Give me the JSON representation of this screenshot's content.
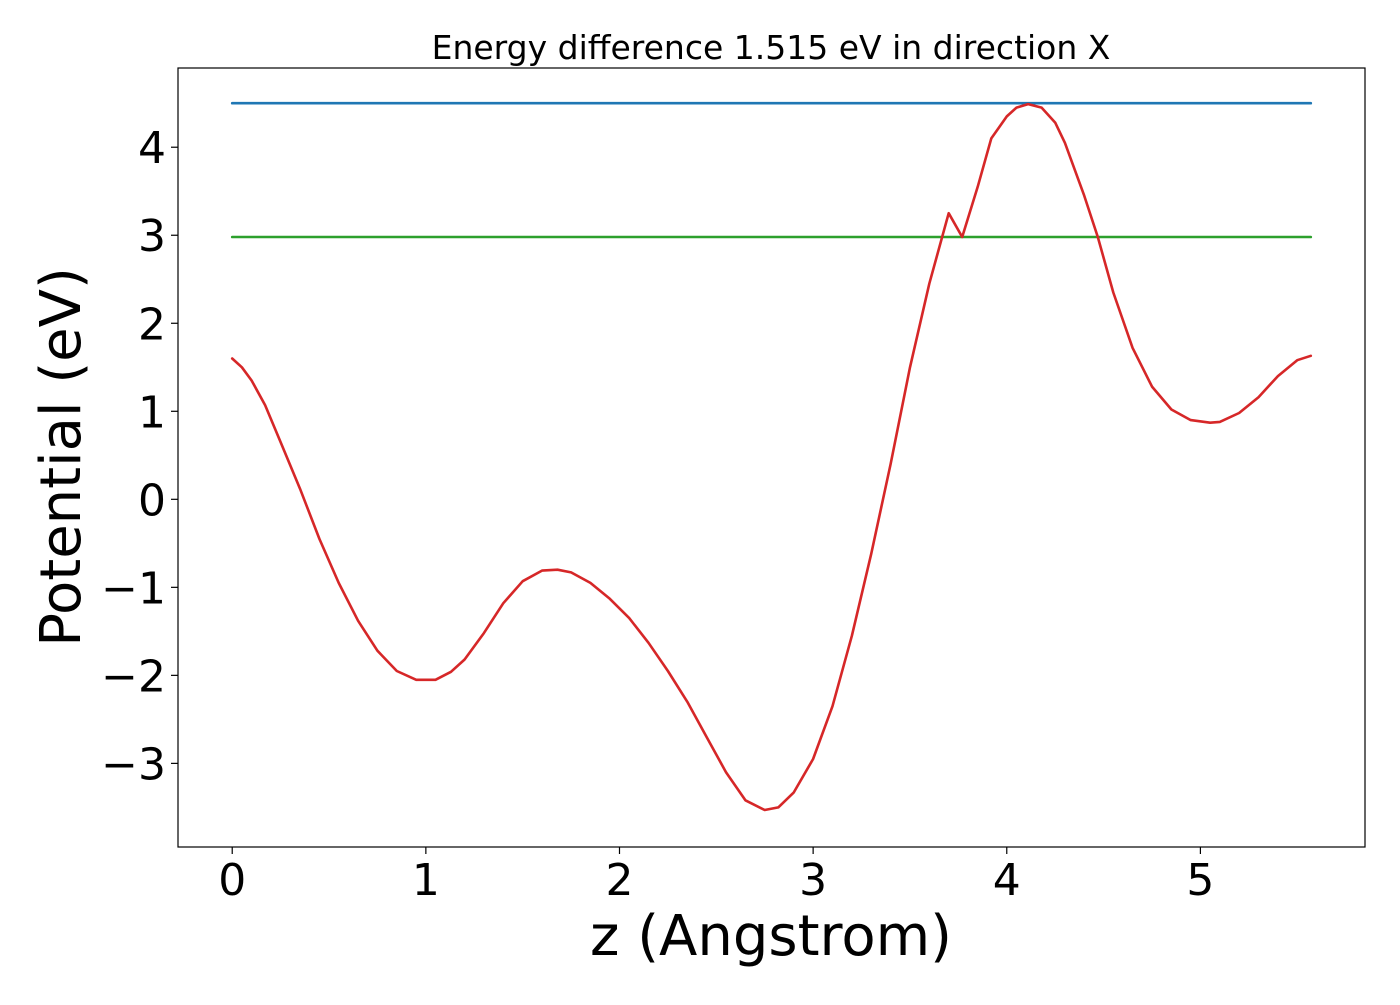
{
  "chart_data": {
    "type": "line",
    "title": "Energy difference 1.515 eV in direction X",
    "xlabel": "z (Angstrom)",
    "ylabel": "Potential (eV)",
    "xlim": [
      -0.28,
      5.85
    ],
    "ylim": [
      -3.95,
      4.9
    ],
    "xticks": [
      0,
      1,
      2,
      3,
      4,
      5
    ],
    "xtick_labels": [
      "0",
      "1",
      "2",
      "3",
      "4",
      "5"
    ],
    "yticks": [
      -3,
      -2,
      -1,
      0,
      1,
      2,
      3,
      4
    ],
    "ytick_labels": [
      "−3",
      "−2",
      "−1",
      "0",
      "1",
      "2",
      "3",
      "4"
    ],
    "grid": false,
    "series": [
      {
        "color": "#1f77b4",
        "style": "hline",
        "x": [
          0,
          5.57
        ],
        "y": [
          4.5,
          4.5
        ]
      },
      {
        "color": "#2ca02c",
        "style": "hline",
        "x": [
          0,
          5.57
        ],
        "y": [
          2.98,
          2.98
        ]
      },
      {
        "color": "#d62728",
        "style": "line",
        "x": [
          0.0,
          0.05,
          0.1,
          0.17,
          0.25,
          0.35,
          0.45,
          0.55,
          0.65,
          0.75,
          0.85,
          0.95,
          1.05,
          1.13,
          1.2,
          1.3,
          1.4,
          1.5,
          1.6,
          1.68,
          1.75,
          1.85,
          1.95,
          2.05,
          2.15,
          2.25,
          2.35,
          2.45,
          2.55,
          2.65,
          2.75,
          2.82,
          2.9,
          3.0,
          3.1,
          3.2,
          3.3,
          3.4,
          3.5,
          3.6,
          3.7,
          3.77,
          3.85,
          3.92,
          4.0,
          4.05,
          4.11,
          4.18,
          4.25,
          4.3,
          4.4,
          4.47,
          4.55,
          4.65,
          4.75,
          4.85,
          4.95,
          5.05,
          5.1,
          5.2,
          5.3,
          5.4,
          5.5,
          5.57
        ],
        "y": [
          1.6,
          1.5,
          1.35,
          1.07,
          0.65,
          0.12,
          -0.45,
          -0.95,
          -1.38,
          -1.72,
          -1.95,
          -2.05,
          -2.05,
          -1.96,
          -1.82,
          -1.52,
          -1.18,
          -0.93,
          -0.81,
          -0.8,
          -0.83,
          -0.95,
          -1.13,
          -1.35,
          -1.63,
          -1.95,
          -2.3,
          -2.7,
          -3.1,
          -3.42,
          -3.53,
          -3.5,
          -3.33,
          -2.95,
          -2.35,
          -1.55,
          -0.62,
          0.4,
          1.5,
          2.45,
          3.25,
          2.98,
          3.55,
          4.1,
          4.35,
          4.45,
          4.49,
          4.45,
          4.28,
          4.05,
          3.45,
          2.98,
          2.35,
          1.72,
          1.28,
          1.02,
          0.9,
          0.87,
          0.88,
          0.98,
          1.16,
          1.4,
          1.58,
          1.63
        ]
      }
    ]
  }
}
